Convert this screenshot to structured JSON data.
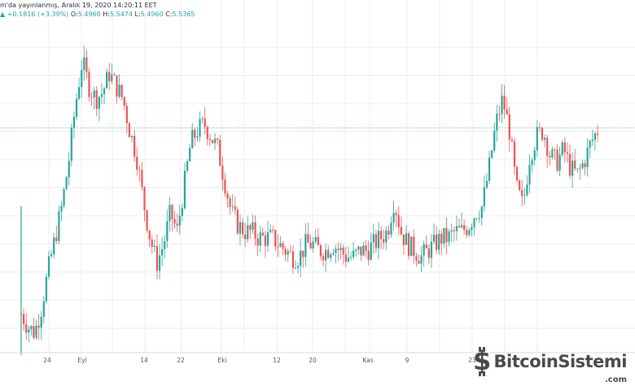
{
  "header": {
    "line1": "m'da yayınlanmış, Aralık 19, 2020 14:20:11 EET",
    "change": "+0.1816 (+3.39%)",
    "o_label": "O:",
    "o_value": "5.4960",
    "h_label": "H:",
    "h_value": "5.5474",
    "l_label": "L:",
    "l_value": "5.4960",
    "c_label": "C:",
    "c_value": "5.5365"
  },
  "logo": {
    "name": "BitcoinSistemi",
    "suffix": ".com"
  },
  "colors": {
    "up": "#26a69a",
    "down": "#ef5350",
    "grid": "#eceef2",
    "last_price_line": "#26a69a"
  },
  "chart_data": {
    "type": "candlestick",
    "title": "",
    "x_tick_labels": [
      "24",
      "Eyl",
      "14",
      "22",
      "Eki",
      "12",
      "20",
      "Kas",
      "9",
      "23"
    ],
    "grid": true,
    "last_close": 5.5365,
    "close_series": [
      2.6,
      2.4,
      2.3,
      2.7,
      3.3,
      3.8,
      4.3,
      5.0,
      5.9,
      6.6,
      6.2,
      6.0,
      6.1,
      6.4,
      6.2,
      6.0,
      5.5,
      5.1,
      4.4,
      3.8,
      3.4,
      3.7,
      4.2,
      3.9,
      4.6,
      5.3,
      5.5,
      5.6,
      5.4,
      5.2,
      4.7,
      4.2,
      4.0,
      3.9,
      3.9,
      3.8,
      3.8,
      3.8,
      3.7,
      3.6,
      3.5,
      3.5,
      3.7,
      3.7,
      3.6,
      3.6,
      3.7,
      3.6,
      3.5,
      3.5,
      3.6,
      3.6,
      3.7,
      3.8,
      3.9,
      4.4,
      3.9,
      3.7,
      3.6,
      3.5,
      3.6,
      3.7,
      3.8,
      3.8,
      3.9,
      3.9,
      4.0,
      4.2,
      4.3,
      4.9,
      5.6,
      6.0,
      5.5,
      4.6,
      4.3,
      5.1,
      5.4,
      5.5,
      5.1,
      5.0,
      5.2,
      4.9,
      4.8,
      5.0,
      5.3,
      5.5
    ]
  }
}
